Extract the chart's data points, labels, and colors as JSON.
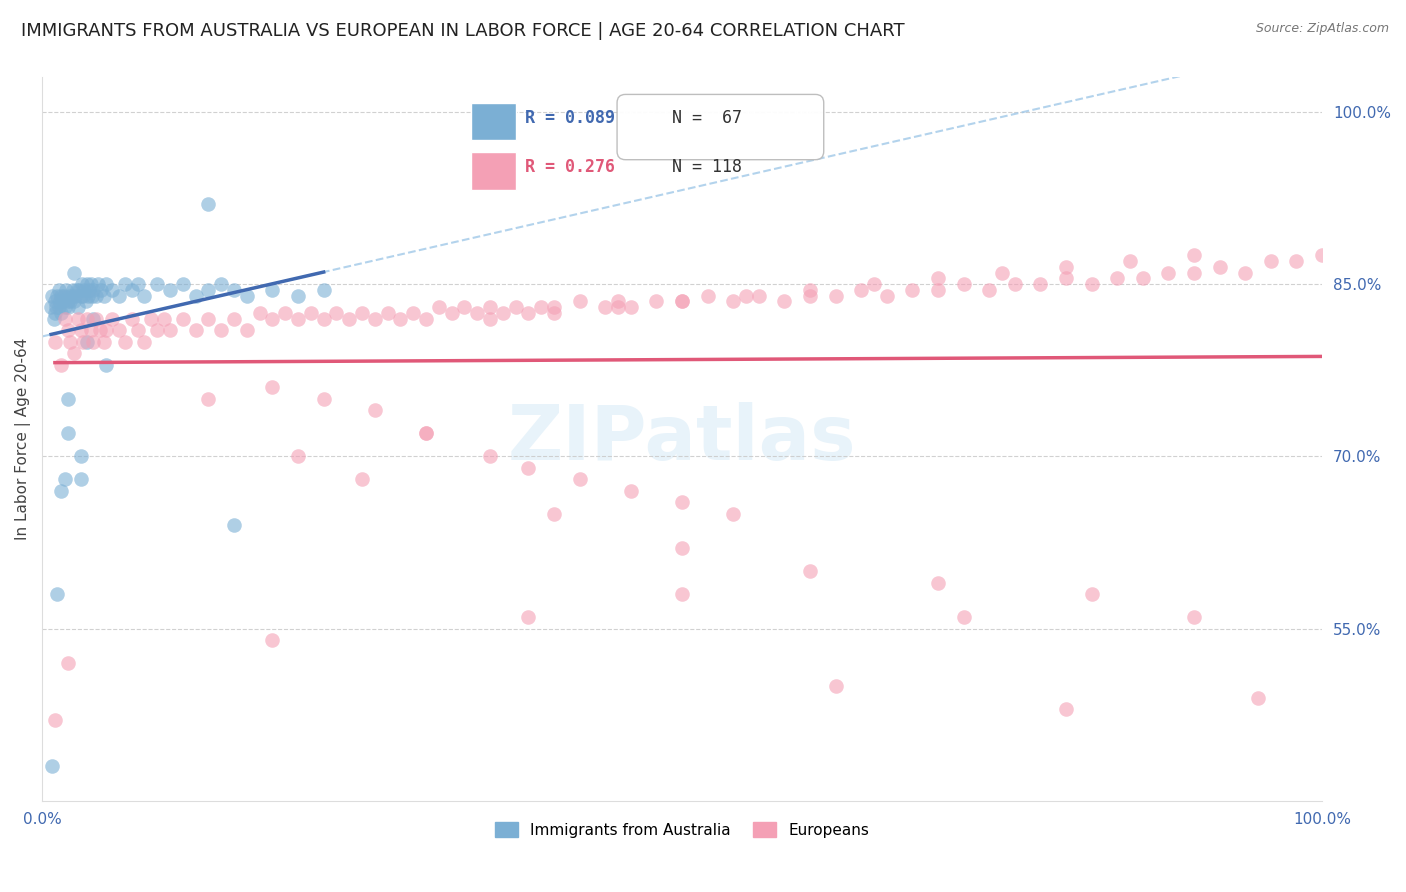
{
  "title": "IMMIGRANTS FROM AUSTRALIA VS EUROPEAN IN LABOR FORCE | AGE 20-64 CORRELATION CHART",
  "source_text": "Source: ZipAtlas.com",
  "ylabel": "In Labor Force | Age 20-64",
  "xlim": [
    0.0,
    1.0
  ],
  "ylim": [
    0.4,
    1.03
  ],
  "yticks": [
    0.55,
    0.7,
    0.85,
    1.0
  ],
  "ytick_labels": [
    "55.0%",
    "70.0%",
    "85.0%",
    "100.0%"
  ],
  "xticks": [
    0.0,
    0.2,
    0.4,
    0.6,
    0.8,
    1.0
  ],
  "xtick_labels": [
    "0.0%",
    "",
    "",
    "",
    "",
    "100.0%"
  ],
  "watermark": "ZIPatlas",
  "australia_color": "#7bafd4",
  "european_color": "#f4a0b5",
  "australia_line_color": "#4169b0",
  "european_line_color": "#e05878",
  "australia_dash_color": "#a0c8e8",
  "background_color": "#ffffff",
  "grid_color": "#cccccc",
  "tick_label_color": "#4169b0",
  "title_fontsize": 13,
  "axis_label_fontsize": 11,
  "tick_fontsize": 11,
  "aus_x": [
    0.007,
    0.008,
    0.009,
    0.01,
    0.01,
    0.011,
    0.012,
    0.013,
    0.013,
    0.014,
    0.015,
    0.015,
    0.016,
    0.017,
    0.018,
    0.019,
    0.02,
    0.02,
    0.021,
    0.022,
    0.023,
    0.024,
    0.025,
    0.026,
    0.027,
    0.028,
    0.029,
    0.03,
    0.031,
    0.032,
    0.033,
    0.034,
    0.035,
    0.036,
    0.037,
    0.038,
    0.039,
    0.04,
    0.042,
    0.044,
    0.046,
    0.048,
    0.05,
    0.055,
    0.06,
    0.065,
    0.07,
    0.075,
    0.08,
    0.09,
    0.1,
    0.11,
    0.12,
    0.13,
    0.14,
    0.15,
    0.16,
    0.18,
    0.2,
    0.22,
    0.15,
    0.13,
    0.05,
    0.04,
    0.035,
    0.03,
    0.025
  ],
  "aus_y": [
    0.83,
    0.84,
    0.82,
    0.835,
    0.825,
    0.83,
    0.84,
    0.83,
    0.845,
    0.835,
    0.84,
    0.825,
    0.835,
    0.84,
    0.83,
    0.845,
    0.835,
    0.83,
    0.84,
    0.835,
    0.84,
    0.845,
    0.835,
    0.84,
    0.845,
    0.83,
    0.845,
    0.84,
    0.85,
    0.84,
    0.845,
    0.835,
    0.85,
    0.84,
    0.845,
    0.85,
    0.84,
    0.845,
    0.84,
    0.85,
    0.845,
    0.84,
    0.85,
    0.845,
    0.84,
    0.85,
    0.845,
    0.85,
    0.84,
    0.85,
    0.845,
    0.85,
    0.84,
    0.845,
    0.85,
    0.845,
    0.84,
    0.845,
    0.84,
    0.845,
    0.64,
    0.92,
    0.78,
    0.82,
    0.8,
    0.7,
    0.86
  ],
  "aus_y_outliers": [
    0.43,
    0.58,
    0.67,
    0.75,
    0.68,
    0.72,
    0.68
  ],
  "aus_x_outliers": [
    0.008,
    0.012,
    0.015,
    0.02,
    0.018,
    0.02,
    0.03
  ],
  "eur_x": [
    0.01,
    0.015,
    0.018,
    0.02,
    0.022,
    0.025,
    0.028,
    0.03,
    0.032,
    0.035,
    0.038,
    0.04,
    0.042,
    0.045,
    0.048,
    0.05,
    0.055,
    0.06,
    0.065,
    0.07,
    0.075,
    0.08,
    0.085,
    0.09,
    0.095,
    0.1,
    0.11,
    0.12,
    0.13,
    0.14,
    0.15,
    0.16,
    0.17,
    0.18,
    0.19,
    0.2,
    0.21,
    0.22,
    0.23,
    0.24,
    0.25,
    0.26,
    0.27,
    0.28,
    0.29,
    0.3,
    0.31,
    0.32,
    0.33,
    0.34,
    0.35,
    0.36,
    0.37,
    0.38,
    0.39,
    0.4,
    0.42,
    0.44,
    0.45,
    0.46,
    0.48,
    0.5,
    0.52,
    0.54,
    0.56,
    0.58,
    0.6,
    0.62,
    0.64,
    0.66,
    0.68,
    0.7,
    0.72,
    0.74,
    0.76,
    0.78,
    0.8,
    0.82,
    0.84,
    0.86,
    0.88,
    0.9,
    0.92,
    0.94,
    0.96,
    0.98,
    1.0,
    0.35,
    0.4,
    0.45,
    0.5,
    0.55,
    0.6,
    0.65,
    0.7,
    0.75,
    0.8,
    0.85,
    0.9,
    0.13,
    0.2,
    0.25,
    0.3,
    0.4,
    0.5,
    0.6,
    0.7,
    0.18,
    0.22,
    0.26,
    0.3,
    0.35,
    0.38,
    0.42,
    0.46,
    0.5,
    0.54
  ],
  "eur_y": [
    0.8,
    0.78,
    0.82,
    0.81,
    0.8,
    0.79,
    0.82,
    0.81,
    0.8,
    0.82,
    0.81,
    0.8,
    0.82,
    0.81,
    0.8,
    0.81,
    0.82,
    0.81,
    0.8,
    0.82,
    0.81,
    0.8,
    0.82,
    0.81,
    0.82,
    0.81,
    0.82,
    0.81,
    0.82,
    0.81,
    0.82,
    0.81,
    0.825,
    0.82,
    0.825,
    0.82,
    0.825,
    0.82,
    0.825,
    0.82,
    0.825,
    0.82,
    0.825,
    0.82,
    0.825,
    0.82,
    0.83,
    0.825,
    0.83,
    0.825,
    0.83,
    0.825,
    0.83,
    0.825,
    0.83,
    0.83,
    0.835,
    0.83,
    0.835,
    0.83,
    0.835,
    0.835,
    0.84,
    0.835,
    0.84,
    0.835,
    0.84,
    0.84,
    0.845,
    0.84,
    0.845,
    0.845,
    0.85,
    0.845,
    0.85,
    0.85,
    0.855,
    0.85,
    0.855,
    0.855,
    0.86,
    0.86,
    0.865,
    0.86,
    0.87,
    0.87,
    0.875,
    0.82,
    0.825,
    0.83,
    0.835,
    0.84,
    0.845,
    0.85,
    0.855,
    0.86,
    0.865,
    0.87,
    0.875,
    0.75,
    0.7,
    0.68,
    0.72,
    0.65,
    0.62,
    0.6,
    0.59,
    0.76,
    0.75,
    0.74,
    0.72,
    0.7,
    0.69,
    0.68,
    0.67,
    0.66,
    0.65
  ],
  "eur_y_low": [
    0.47,
    0.52,
    0.54,
    0.56,
    0.58,
    0.48,
    0.5,
    0.56,
    0.58,
    0.56,
    0.49
  ],
  "eur_x_low": [
    0.01,
    0.02,
    0.18,
    0.38,
    0.5,
    0.8,
    0.62,
    0.72,
    0.82,
    0.9,
    0.95
  ],
  "legend_R_aus": "R = 0.089",
  "legend_N_aus": "N =  67",
  "legend_R_eur": "R = 0.276",
  "legend_N_eur": "N = 118"
}
